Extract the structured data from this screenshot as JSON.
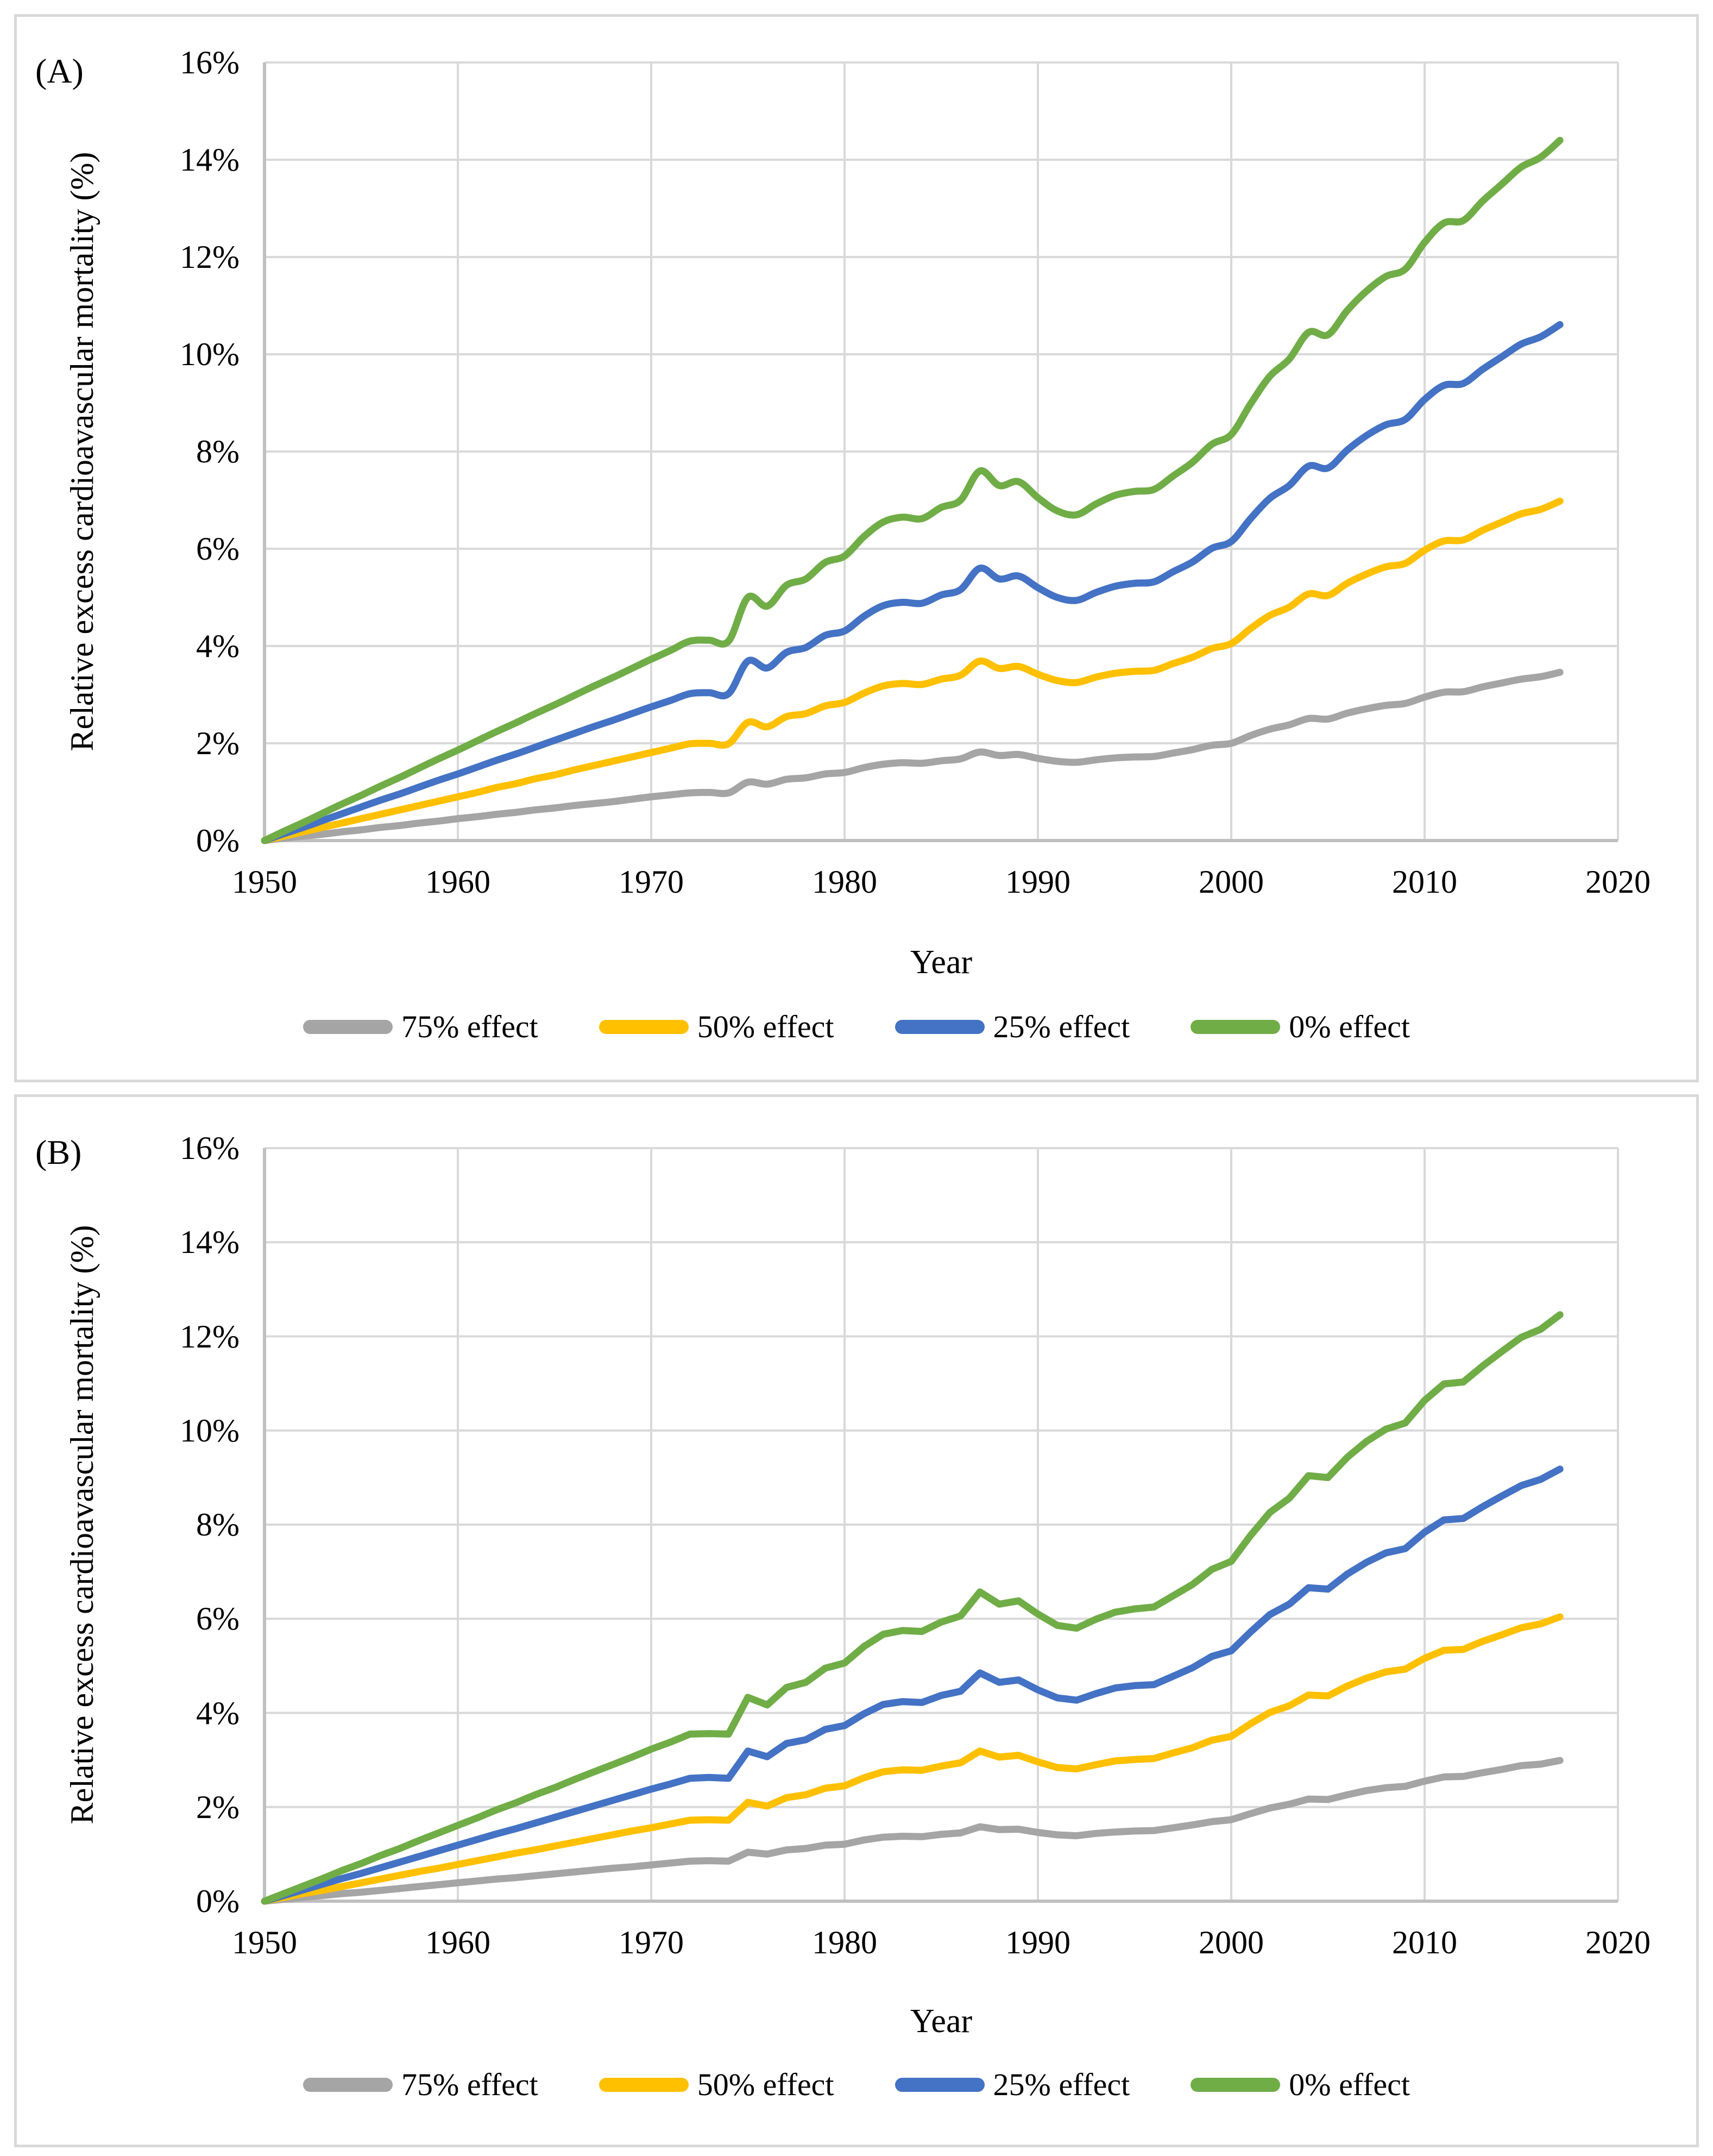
{
  "colors": {
    "background": "#ffffff",
    "panel_border": "#d9d9d9",
    "gridline": "#d9d9d9",
    "axis_line": "#bfbfbf",
    "text": "#000000",
    "series_75": "#a5a5a5",
    "series_50": "#ffc000",
    "series_25": "#4472c4",
    "series_0": "#70ad47"
  },
  "chart_data": [
    {
      "type": "line",
      "panel_label": "(A)",
      "xlabel": "Year",
      "ylabel": "Relative excess cardioavascular mortality (%)",
      "xlim": [
        1950,
        2020
      ],
      "ylim": [
        0,
        16
      ],
      "grid": true,
      "smoothed": true,
      "legend_position": "bottom",
      "y_ticks": [
        "16%",
        "14%",
        "12%",
        "10%",
        "8%",
        "6%",
        "4%",
        "2%",
        "0%"
      ],
      "x_ticks": [
        "1950",
        "1960",
        "1970",
        "1980",
        "1990",
        "2000",
        "2010",
        "2020"
      ],
      "x": [
        1950,
        1951,
        1952,
        1953,
        1954,
        1955,
        1956,
        1957,
        1958,
        1959,
        1960,
        1961,
        1962,
        1963,
        1964,
        1965,
        1966,
        1967,
        1968,
        1969,
        1970,
        1971,
        1972,
        1973,
        1974,
        1975,
        1976,
        1977,
        1978,
        1979,
        1980,
        1981,
        1982,
        1983,
        1984,
        1985,
        1986,
        1987,
        1988,
        1989,
        1990,
        1991,
        1992,
        1993,
        1994,
        1995,
        1996,
        1997,
        1998,
        1999,
        2000,
        2001,
        2002,
        2003,
        2004,
        2005,
        2006,
        2007,
        2008,
        2009,
        2010,
        2011,
        2012,
        2013,
        2014,
        2015,
        2016,
        2017
      ],
      "series": [
        {
          "name": "75% effect",
          "color": "#a5a5a5",
          "values": [
            0,
            0.05,
            0.09,
            0.13,
            0.18,
            0.22,
            0.27,
            0.31,
            0.36,
            0.4,
            0.45,
            0.49,
            0.54,
            0.58,
            0.63,
            0.67,
            0.72,
            0.76,
            0.8,
            0.85,
            0.9,
            0.94,
            0.98,
            0.99,
            0.98,
            1.2,
            1.16,
            1.26,
            1.29,
            1.37,
            1.4,
            1.5,
            1.57,
            1.6,
            1.59,
            1.64,
            1.68,
            1.82,
            1.75,
            1.77,
            1.69,
            1.63,
            1.61,
            1.66,
            1.7,
            1.72,
            1.73,
            1.8,
            1.87,
            1.96,
            2.0,
            2.16,
            2.29,
            2.38,
            2.51,
            2.5,
            2.62,
            2.71,
            2.78,
            2.82,
            2.95,
            3.05,
            3.06,
            3.16,
            3.24,
            3.32,
            3.37,
            3.46
          ]
        },
        {
          "name": "50% effect",
          "color": "#ffc000",
          "values": [
            0,
            0.09,
            0.18,
            0.27,
            0.36,
            0.45,
            0.54,
            0.63,
            0.72,
            0.81,
            0.9,
            0.99,
            1.09,
            1.17,
            1.27,
            1.35,
            1.45,
            1.54,
            1.63,
            1.72,
            1.81,
            1.9,
            1.99,
            2.0,
            1.99,
            2.43,
            2.34,
            2.55,
            2.61,
            2.77,
            2.84,
            3.03,
            3.18,
            3.23,
            3.21,
            3.32,
            3.4,
            3.69,
            3.54,
            3.58,
            3.42,
            3.29,
            3.25,
            3.36,
            3.44,
            3.48,
            3.5,
            3.64,
            3.77,
            3.95,
            4.05,
            4.36,
            4.63,
            4.8,
            5.07,
            5.04,
            5.29,
            5.48,
            5.63,
            5.7,
            5.97,
            6.16,
            6.18,
            6.38,
            6.55,
            6.72,
            6.81,
            6.98
          ]
        },
        {
          "name": "25% effect",
          "color": "#4472c4",
          "values": [
            0,
            0.14,
            0.27,
            0.41,
            0.55,
            0.69,
            0.83,
            0.96,
            1.1,
            1.24,
            1.37,
            1.51,
            1.65,
            1.78,
            1.92,
            2.06,
            2.2,
            2.34,
            2.47,
            2.61,
            2.75,
            2.88,
            3.02,
            3.04,
            3.02,
            3.69,
            3.55,
            3.87,
            3.97,
            4.22,
            4.31,
            4.61,
            4.83,
            4.9,
            4.88,
            5.05,
            5.16,
            5.6,
            5.38,
            5.44,
            5.2,
            5.0,
            4.94,
            5.1,
            5.23,
            5.29,
            5.32,
            5.53,
            5.73,
            6.01,
            6.15,
            6.62,
            7.04,
            7.3,
            7.7,
            7.66,
            8.03,
            8.33,
            8.55,
            8.66,
            9.07,
            9.36,
            9.4,
            9.69,
            9.95,
            10.21,
            10.36,
            10.61
          ]
        },
        {
          "name": "0% effect",
          "color": "#70ad47",
          "values": [
            0,
            0.19,
            0.37,
            0.56,
            0.75,
            0.93,
            1.12,
            1.3,
            1.49,
            1.68,
            1.86,
            2.05,
            2.24,
            2.42,
            2.61,
            2.79,
            2.98,
            3.17,
            3.35,
            3.54,
            3.73,
            3.91,
            4.1,
            4.12,
            4.1,
            5.0,
            4.82,
            5.25,
            5.38,
            5.72,
            5.85,
            6.25,
            6.55,
            6.65,
            6.62,
            6.85,
            7.0,
            7.6,
            7.3,
            7.38,
            7.05,
            6.78,
            6.7,
            6.92,
            7.1,
            7.18,
            7.22,
            7.5,
            7.78,
            8.15,
            8.35,
            8.98,
            9.55,
            9.9,
            10.45,
            10.4,
            10.9,
            11.3,
            11.6,
            11.75,
            12.3,
            12.7,
            12.75,
            13.15,
            13.5,
            13.85,
            14.05,
            14.4
          ]
        }
      ]
    },
    {
      "type": "line",
      "panel_label": "(B)",
      "xlabel": "Year",
      "ylabel": "Relative excess cardioavascular mortality (%)",
      "xlim": [
        1950,
        2020
      ],
      "ylim": [
        0,
        16
      ],
      "grid": true,
      "smoothed": false,
      "legend_position": "bottom",
      "y_ticks": [
        "16%",
        "14%",
        "12%",
        "10%",
        "8%",
        "6%",
        "4%",
        "2%",
        "0%"
      ],
      "x_ticks": [
        "1950",
        "1960",
        "1970",
        "1980",
        "1990",
        "2000",
        "2010",
        "2020"
      ],
      "x": [
        1950,
        1951,
        1952,
        1953,
        1954,
        1955,
        1956,
        1957,
        1958,
        1959,
        1960,
        1961,
        1962,
        1963,
        1964,
        1965,
        1966,
        1967,
        1968,
        1969,
        1970,
        1971,
        1972,
        1973,
        1974,
        1975,
        1976,
        1977,
        1978,
        1979,
        1980,
        1981,
        1982,
        1983,
        1984,
        1985,
        1986,
        1987,
        1988,
        1989,
        1990,
        1991,
        1992,
        1993,
        1994,
        1995,
        1996,
        1997,
        1998,
        1999,
        2000,
        2001,
        2002,
        2003,
        2004,
        2005,
        2006,
        2007,
        2008,
        2009,
        2010,
        2011,
        2012,
        2013,
        2014,
        2015,
        2016,
        2017
      ],
      "series": [
        {
          "name": "75% effect",
          "color": "#a5a5a5",
          "values": [
            0,
            0.04,
            0.08,
            0.12,
            0.16,
            0.19,
            0.23,
            0.27,
            0.31,
            0.35,
            0.39,
            0.43,
            0.47,
            0.5,
            0.54,
            0.58,
            0.62,
            0.66,
            0.7,
            0.73,
            0.77,
            0.81,
            0.85,
            0.86,
            0.85,
            1.04,
            1.0,
            1.09,
            1.12,
            1.19,
            1.21,
            1.3,
            1.36,
            1.38,
            1.37,
            1.42,
            1.45,
            1.58,
            1.52,
            1.53,
            1.46,
            1.41,
            1.39,
            1.44,
            1.47,
            1.49,
            1.5,
            1.56,
            1.62,
            1.69,
            1.73,
            1.86,
            1.98,
            2.06,
            2.17,
            2.16,
            2.26,
            2.35,
            2.41,
            2.44,
            2.55,
            2.64,
            2.65,
            2.73,
            2.8,
            2.88,
            2.91,
            2.99
          ]
        },
        {
          "name": "50% effect",
          "color": "#ffc000",
          "values": [
            0,
            0.08,
            0.16,
            0.23,
            0.31,
            0.39,
            0.47,
            0.55,
            0.63,
            0.7,
            0.78,
            0.86,
            0.94,
            1.02,
            1.09,
            1.17,
            1.25,
            1.33,
            1.41,
            1.49,
            1.56,
            1.64,
            1.72,
            1.73,
            1.72,
            2.1,
            2.02,
            2.2,
            2.26,
            2.4,
            2.45,
            2.62,
            2.75,
            2.79,
            2.78,
            2.87,
            2.94,
            3.19,
            3.06,
            3.1,
            2.96,
            2.84,
            2.81,
            2.9,
            2.98,
            3.01,
            3.03,
            3.15,
            3.26,
            3.42,
            3.5,
            3.77,
            4.01,
            4.15,
            4.38,
            4.36,
            4.57,
            4.74,
            4.87,
            4.93,
            5.16,
            5.33,
            5.35,
            5.52,
            5.66,
            5.81,
            5.89,
            6.04
          ]
        },
        {
          "name": "25% effect",
          "color": "#4472c4",
          "values": [
            0,
            0.12,
            0.24,
            0.36,
            0.48,
            0.59,
            0.71,
            0.83,
            0.95,
            1.07,
            1.19,
            1.31,
            1.43,
            1.54,
            1.66,
            1.78,
            1.9,
            2.02,
            2.14,
            2.26,
            2.38,
            2.49,
            2.61,
            2.63,
            2.61,
            3.19,
            3.07,
            3.35,
            3.43,
            3.65,
            3.73,
            3.98,
            4.18,
            4.24,
            4.22,
            4.37,
            4.46,
            4.85,
            4.65,
            4.7,
            4.49,
            4.32,
            4.27,
            4.41,
            4.53,
            4.58,
            4.6,
            4.78,
            4.96,
            5.2,
            5.32,
            5.72,
            6.09,
            6.31,
            6.66,
            6.63,
            6.95,
            7.2,
            7.4,
            7.49,
            7.84,
            8.1,
            8.13,
            8.38,
            8.61,
            8.83,
            8.96,
            9.18
          ]
        },
        {
          "name": "0% effect",
          "color": "#70ad47",
          "values": [
            0,
            0.16,
            0.32,
            0.48,
            0.65,
            0.8,
            0.97,
            1.12,
            1.29,
            1.45,
            1.61,
            1.77,
            1.94,
            2.09,
            2.26,
            2.41,
            2.58,
            2.74,
            2.9,
            3.06,
            3.23,
            3.38,
            3.55,
            3.56,
            3.55,
            4.33,
            4.17,
            4.54,
            4.65,
            4.95,
            5.06,
            5.41,
            5.67,
            5.75,
            5.73,
            5.93,
            6.06,
            6.57,
            6.31,
            6.38,
            6.1,
            5.86,
            5.8,
            5.99,
            6.14,
            6.21,
            6.25,
            6.49,
            6.73,
            7.05,
            7.22,
            7.77,
            8.26,
            8.56,
            9.04,
            9.0,
            9.43,
            9.77,
            10.03,
            10.16,
            10.64,
            10.99,
            11.03,
            11.37,
            11.68,
            11.98,
            12.15,
            12.46
          ]
        }
      ]
    }
  ]
}
